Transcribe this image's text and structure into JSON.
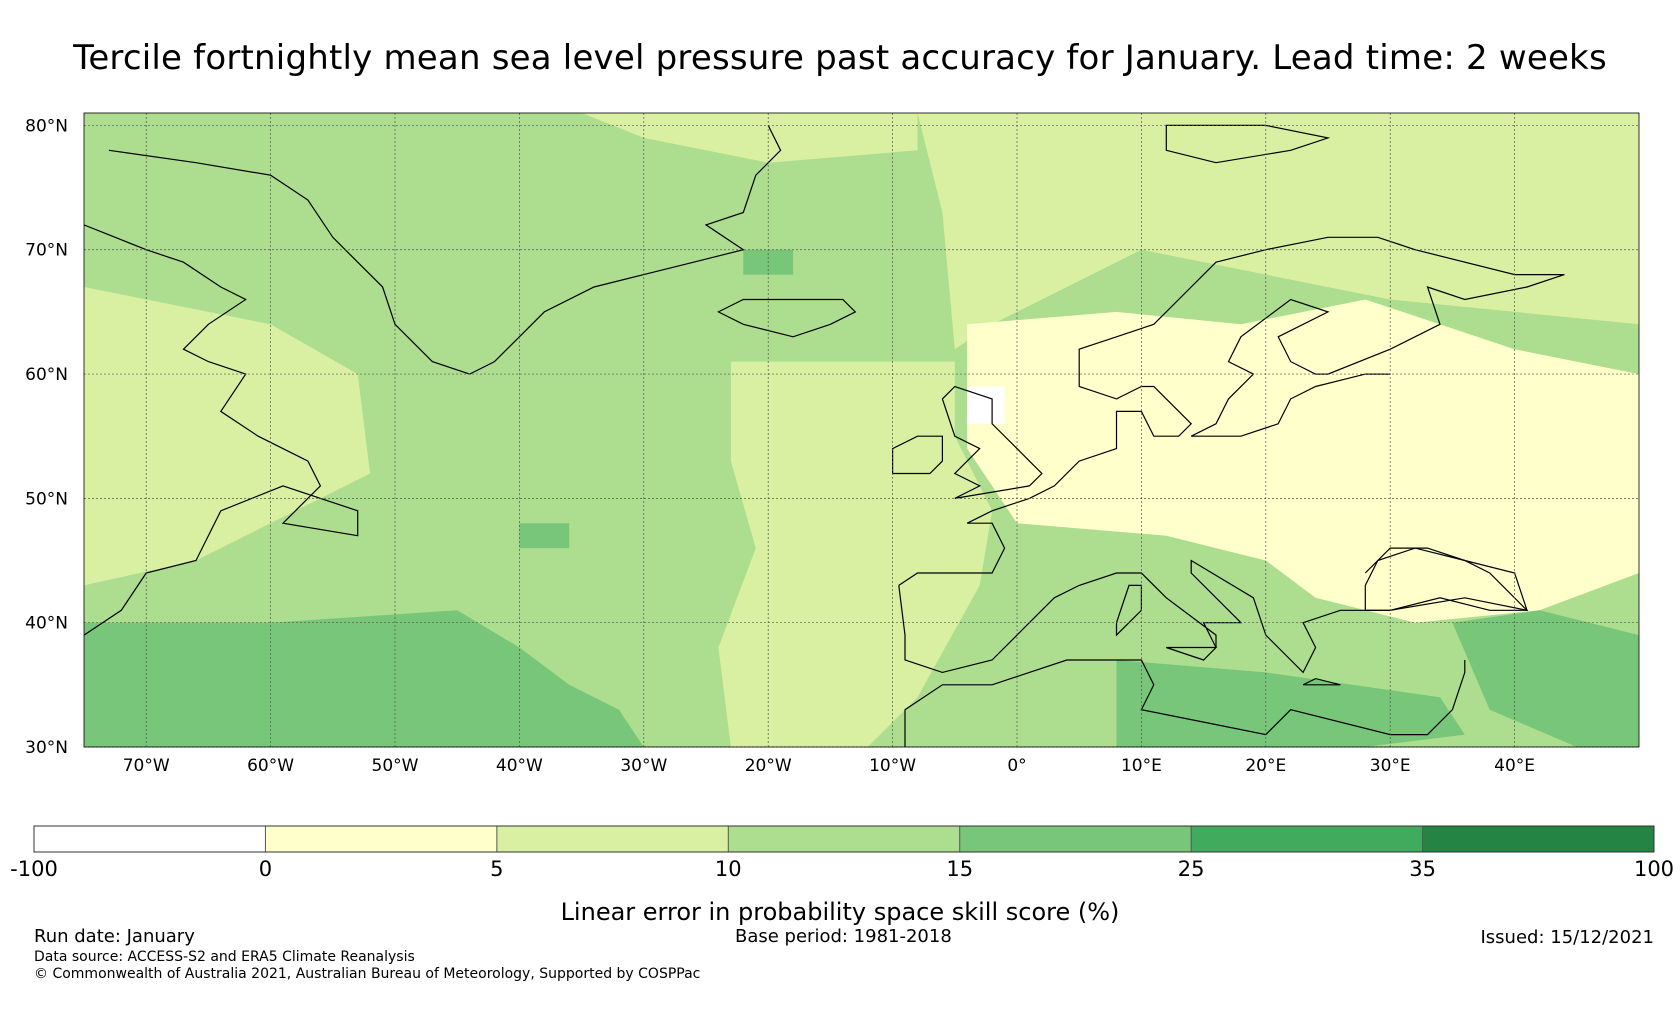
{
  "title": "Tercile fortnightly mean sea level pressure past accuracy for January. Lead time: 2 weeks",
  "map": {
    "lat_labels": [
      "80°N",
      "70°N",
      "60°N",
      "50°N",
      "40°N",
      "30°N"
    ],
    "lon_labels": [
      "70°W",
      "60°W",
      "50°W",
      "40°W",
      "30°W",
      "20°W",
      "10°W",
      "0°",
      "10°E",
      "20°E",
      "30°E",
      "40°E"
    ],
    "lat_values": [
      80,
      70,
      60,
      50,
      40,
      30
    ],
    "lon_values": [
      -70,
      -60,
      -50,
      -40,
      -30,
      -20,
      -10,
      0,
      10,
      20,
      30,
      40
    ],
    "extent": {
      "lon_min": -75,
      "lon_max": 50,
      "lat_min": 30,
      "lat_max": 81
    }
  },
  "colorbar": {
    "label": "Linear error in probability space skill score (%)",
    "ticks": [
      "-100",
      "0",
      "5",
      "10",
      "15",
      "25",
      "35",
      "100"
    ],
    "colors": [
      "#ffffff",
      "#ffffcc",
      "#d9f0a3",
      "#addd8e",
      "#78c679",
      "#41ab5d",
      "#238443"
    ]
  },
  "footer": {
    "run_date": "Run date: January",
    "base_period": "Base period: 1981-2018",
    "issued": "Issued: 15/12/2021",
    "data_source": "Data source: ACCESS-S2 and ERA5 Climate Reanalysis",
    "copyright": "© Commonwealth of Australia 2021, Australian Bureau of Meteorology, Supported by COSPPac"
  }
}
